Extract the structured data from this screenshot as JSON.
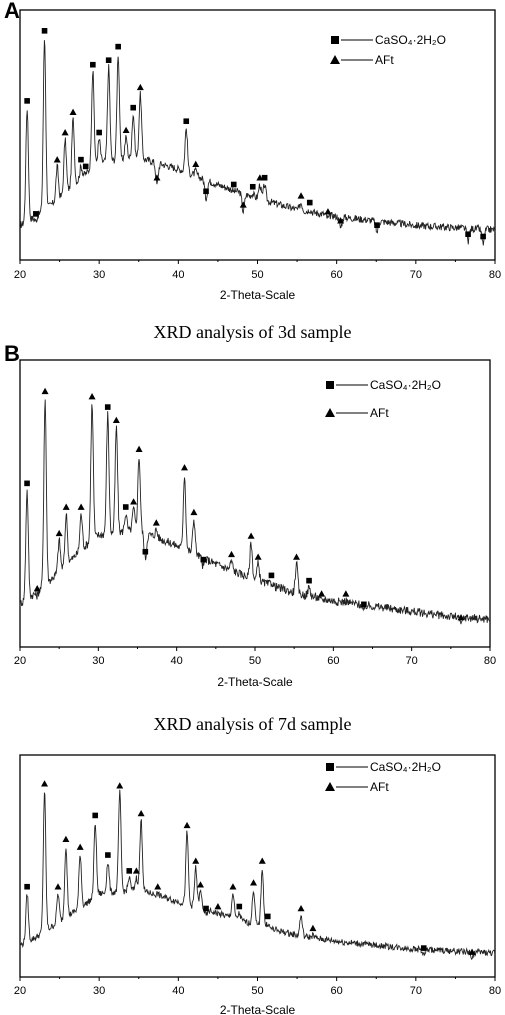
{
  "panels": [
    {
      "letter": "A",
      "caption": "XRD analysis of 3d sample",
      "legend": [
        {
          "marker": "square",
          "text": "CaSO₄·2H₂O"
        },
        {
          "marker": "triangle",
          "text": "AFt"
        }
      ]
    },
    {
      "letter": "B",
      "caption": "XRD analysis of 7d sample",
      "legend": [
        {
          "marker": "square",
          "text": "CaSO₄·2H₂O"
        },
        {
          "marker": "triangle",
          "text": "AFt"
        }
      ]
    },
    {
      "letter": "",
      "caption": "",
      "legend": [
        {
          "marker": "square",
          "text": "CaSO₄·2H₂O"
        },
        {
          "marker": "triangle",
          "text": "AFt"
        }
      ]
    }
  ],
  "chart_data": [
    {
      "type": "line",
      "xlabel": "2-Theta-Scale",
      "ylabel": "",
      "xlim": [
        20,
        80
      ],
      "xticks": [
        20,
        30,
        40,
        50,
        60,
        70,
        80
      ],
      "ylim": [
        0,
        100
      ],
      "baseline": {
        "x": [
          20,
          22,
          25,
          28,
          30,
          35,
          40,
          45,
          50,
          55,
          60,
          65,
          70,
          75,
          80
        ],
        "y": [
          10,
          14,
          22,
          32,
          38,
          40,
          35,
          28,
          22,
          17,
          14,
          12,
          10,
          9,
          8
        ]
      },
      "peaks": [
        {
          "x": 20.9,
          "y": 62,
          "marker": "square"
        },
        {
          "x": 22.0,
          "y": 12,
          "marker": "square"
        },
        {
          "x": 23.1,
          "y": 93,
          "marker": "square"
        },
        {
          "x": 24.7,
          "y": 36,
          "marker": "triangle"
        },
        {
          "x": 25.7,
          "y": 48,
          "marker": "triangle"
        },
        {
          "x": 26.7,
          "y": 57,
          "marker": "triangle"
        },
        {
          "x": 27.7,
          "y": 36,
          "marker": "square"
        },
        {
          "x": 28.3,
          "y": 33,
          "marker": "square"
        },
        {
          "x": 29.2,
          "y": 78,
          "marker": "square"
        },
        {
          "x": 30.0,
          "y": 48,
          "marker": "square"
        },
        {
          "x": 31.2,
          "y": 80,
          "marker": "square"
        },
        {
          "x": 32.4,
          "y": 86,
          "marker": "square"
        },
        {
          "x": 33.4,
          "y": 49,
          "marker": "triangle"
        },
        {
          "x": 34.3,
          "y": 59,
          "marker": "square"
        },
        {
          "x": 35.2,
          "y": 68,
          "marker": "triangle"
        },
        {
          "x": 37.3,
          "y": 28,
          "marker": "triangle"
        },
        {
          "x": 41.0,
          "y": 53,
          "marker": "square"
        },
        {
          "x": 42.2,
          "y": 34,
          "marker": "triangle"
        },
        {
          "x": 43.5,
          "y": 22,
          "marker": "square"
        },
        {
          "x": 47.0,
          "y": 25,
          "marker": "square"
        },
        {
          "x": 48.2,
          "y": 16,
          "marker": "triangle"
        },
        {
          "x": 49.4,
          "y": 24,
          "marker": "square"
        },
        {
          "x": 50.3,
          "y": 28,
          "marker": "triangle"
        },
        {
          "x": 50.9,
          "y": 28,
          "marker": "square"
        },
        {
          "x": 55.5,
          "y": 20,
          "marker": "triangle"
        },
        {
          "x": 56.6,
          "y": 17,
          "marker": "square"
        },
        {
          "x": 58.9,
          "y": 13,
          "marker": "triangle"
        },
        {
          "x": 60.5,
          "y": 9,
          "marker": "triangle"
        },
        {
          "x": 65.1,
          "y": 7,
          "marker": "square"
        },
        {
          "x": 76.6,
          "y": 3,
          "marker": "square"
        },
        {
          "x": 78.5,
          "y": 2,
          "marker": "square"
        }
      ]
    },
    {
      "type": "line",
      "xlabel": "2-Theta-Scale",
      "ylabel": "",
      "xlim": [
        20,
        80
      ],
      "xticks": [
        20,
        30,
        40,
        50,
        60,
        70,
        80
      ],
      "ylim": [
        0,
        100
      ],
      "baseline": {
        "x": [
          20,
          22,
          25,
          28,
          30,
          35,
          40,
          45,
          50,
          55,
          60,
          65,
          70,
          75,
          80
        ],
        "y": [
          12,
          16,
          24,
          33,
          38,
          40,
          34,
          27,
          21,
          16,
          13,
          11,
          9,
          7,
          6
        ]
      },
      "peaks": [
        {
          "x": 20.9,
          "y": 55,
          "marker": "square"
        },
        {
          "x": 22.2,
          "y": 15,
          "marker": "triangle"
        },
        {
          "x": 23.2,
          "y": 90,
          "marker": "triangle"
        },
        {
          "x": 25.0,
          "y": 36,
          "marker": "triangle"
        },
        {
          "x": 25.9,
          "y": 46,
          "marker": "triangle"
        },
        {
          "x": 27.8,
          "y": 46,
          "marker": "triangle"
        },
        {
          "x": 29.2,
          "y": 88,
          "marker": "triangle"
        },
        {
          "x": 31.2,
          "y": 84,
          "marker": "square"
        },
        {
          "x": 32.3,
          "y": 79,
          "marker": "triangle"
        },
        {
          "x": 33.5,
          "y": 46,
          "marker": "square"
        },
        {
          "x": 34.5,
          "y": 48,
          "marker": "triangle"
        },
        {
          "x": 35.2,
          "y": 68,
          "marker": "triangle"
        },
        {
          "x": 36.0,
          "y": 29,
          "marker": "square"
        },
        {
          "x": 37.4,
          "y": 40,
          "marker": "triangle"
        },
        {
          "x": 41.0,
          "y": 61,
          "marker": "triangle"
        },
        {
          "x": 42.2,
          "y": 44,
          "marker": "triangle"
        },
        {
          "x": 43.4,
          "y": 26,
          "marker": "square"
        },
        {
          "x": 47.0,
          "y": 28,
          "marker": "triangle"
        },
        {
          "x": 49.5,
          "y": 35,
          "marker": "triangle"
        },
        {
          "x": 50.4,
          "y": 27,
          "marker": "triangle"
        },
        {
          "x": 52.1,
          "y": 20,
          "marker": "square"
        },
        {
          "x": 55.3,
          "y": 27,
          "marker": "triangle"
        },
        {
          "x": 56.9,
          "y": 18,
          "marker": "square"
        },
        {
          "x": 58.5,
          "y": 13,
          "marker": "triangle"
        },
        {
          "x": 61.6,
          "y": 13,
          "marker": "triangle"
        },
        {
          "x": 63.9,
          "y": 9,
          "marker": "square"
        },
        {
          "x": 76.3,
          "y": 4,
          "marker": "triangle"
        }
      ]
    },
    {
      "type": "line",
      "xlabel": "2-Theta-Scale",
      "ylabel": "",
      "xlim": [
        20,
        80
      ],
      "xticks": [
        20,
        30,
        40,
        50,
        60,
        70,
        80
      ],
      "ylim": [
        0,
        100
      ],
      "baseline": {
        "x": [
          20,
          22,
          25,
          28,
          30,
          35,
          40,
          45,
          50,
          55,
          60,
          65,
          70,
          75,
          80
        ],
        "y": [
          10,
          14,
          22,
          30,
          36,
          38,
          32,
          26,
          20,
          15,
          12,
          10,
          8,
          7,
          6
        ]
      },
      "peaks": [
        {
          "x": 20.9,
          "y": 36,
          "marker": "square"
        },
        {
          "x": 23.1,
          "y": 88,
          "marker": "triangle"
        },
        {
          "x": 24.8,
          "y": 36,
          "marker": "triangle"
        },
        {
          "x": 25.8,
          "y": 60,
          "marker": "triangle"
        },
        {
          "x": 27.6,
          "y": 56,
          "marker": "triangle"
        },
        {
          "x": 29.5,
          "y": 72,
          "marker": "square"
        },
        {
          "x": 31.1,
          "y": 52,
          "marker": "square"
        },
        {
          "x": 32.6,
          "y": 87,
          "marker": "triangle"
        },
        {
          "x": 33.8,
          "y": 44,
          "marker": "square"
        },
        {
          "x": 34.7,
          "y": 44,
          "marker": "triangle"
        },
        {
          "x": 35.3,
          "y": 73,
          "marker": "triangle"
        },
        {
          "x": 37.4,
          "y": 36,
          "marker": "triangle"
        },
        {
          "x": 41.1,
          "y": 67,
          "marker": "triangle"
        },
        {
          "x": 42.2,
          "y": 49,
          "marker": "triangle"
        },
        {
          "x": 42.8,
          "y": 37,
          "marker": "triangle"
        },
        {
          "x": 43.5,
          "y": 25,
          "marker": "square"
        },
        {
          "x": 45.0,
          "y": 26,
          "marker": "triangle"
        },
        {
          "x": 46.9,
          "y": 36,
          "marker": "triangle"
        },
        {
          "x": 47.7,
          "y": 26,
          "marker": "square"
        },
        {
          "x": 49.5,
          "y": 38,
          "marker": "triangle"
        },
        {
          "x": 50.6,
          "y": 49,
          "marker": "triangle"
        },
        {
          "x": 51.3,
          "y": 21,
          "marker": "square"
        },
        {
          "x": 55.5,
          "y": 25,
          "marker": "triangle"
        },
        {
          "x": 57.0,
          "y": 15,
          "marker": "triangle"
        },
        {
          "x": 71.0,
          "y": 5,
          "marker": "square"
        },
        {
          "x": 77.1,
          "y": 3,
          "marker": "triangle"
        }
      ]
    }
  ]
}
